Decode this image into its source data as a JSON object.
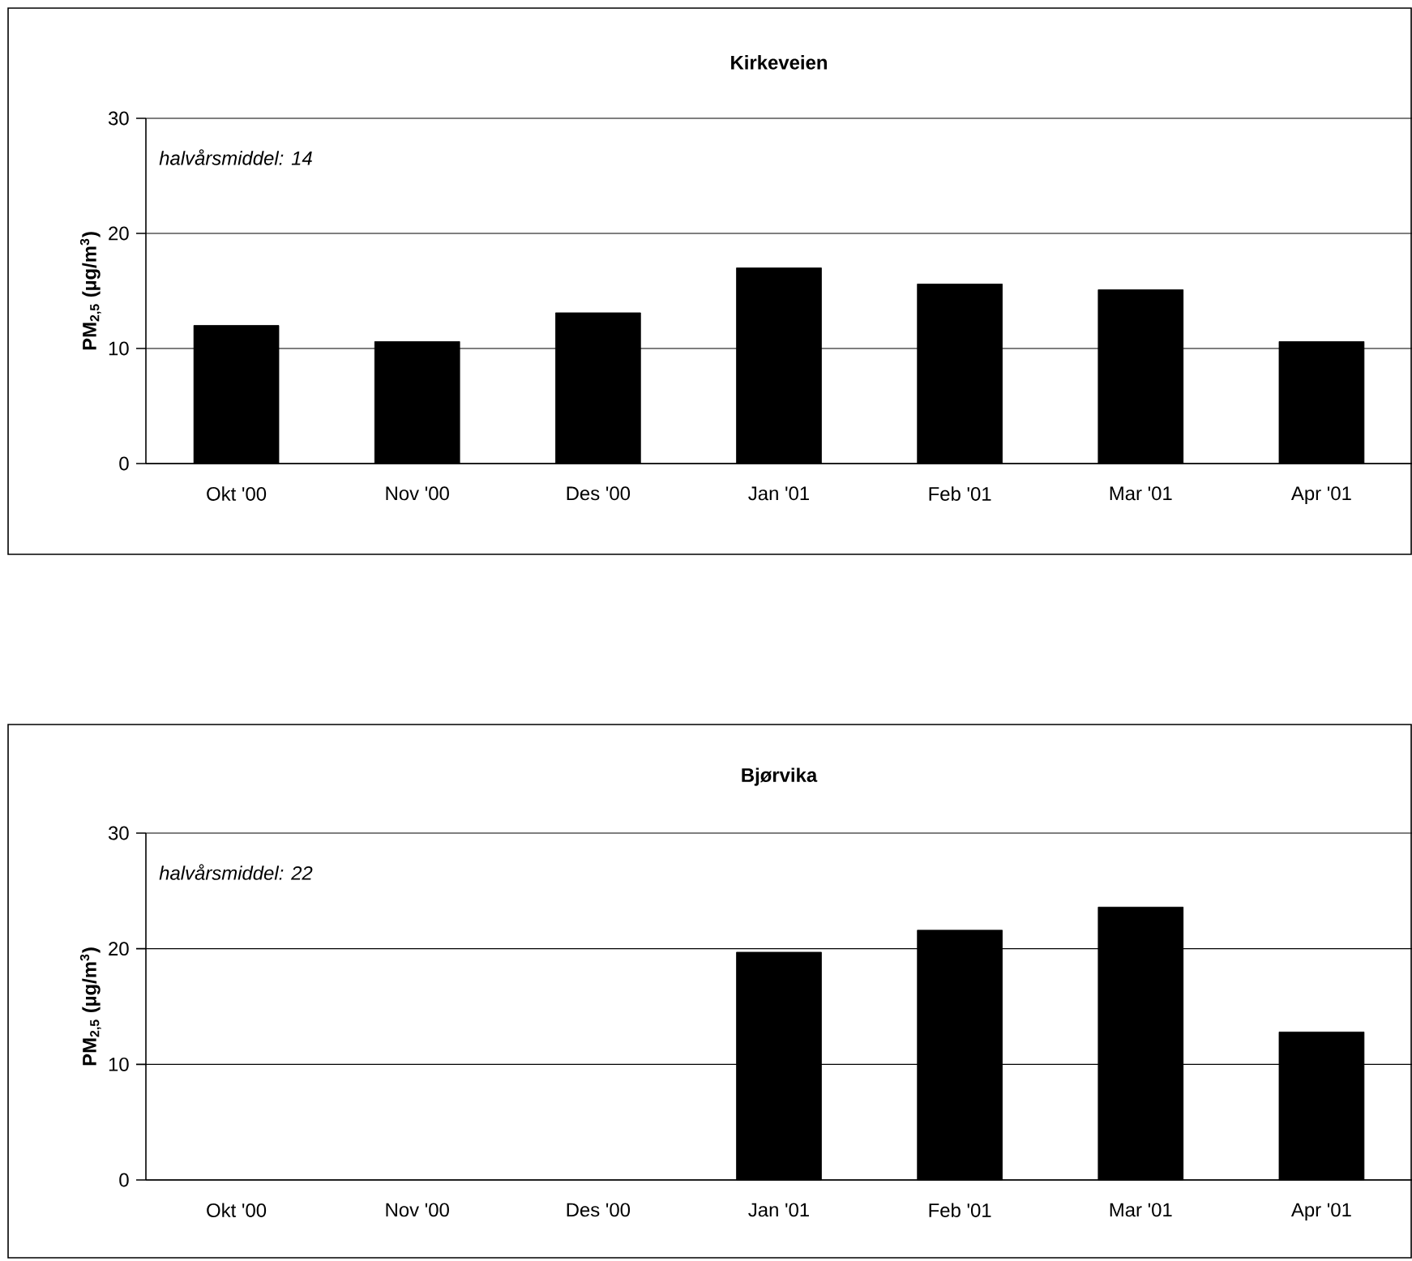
{
  "chart_data": [
    {
      "type": "bar",
      "title": "Kirkeveien",
      "ylabel": "PM$_{2,5}$ (µg/m$^{3}$)",
      "categories": [
        "Okt '00",
        "Nov '00",
        "Des '00",
        "Jan '01",
        "Feb '01",
        "Mar '01",
        "Apr '01"
      ],
      "values": [
        12.0,
        10.6,
        13.1,
        17.0,
        15.6,
        15.1,
        10.6
      ],
      "color": "#000000",
      "ylim": [
        0,
        30
      ],
      "yticks": [
        0,
        10,
        20,
        30
      ],
      "grid": "y",
      "annotations": [
        "halvårsmiddel: 14"
      ]
    },
    {
      "type": "bar",
      "title": "Bjørvika",
      "ylabel": "PM$_{2,5}$ (µg/m$^{3}$)",
      "categories": [
        "Okt '00",
        "Nov '00",
        "Des '00",
        "Jan '01",
        "Feb '01",
        "Mar '01",
        "Apr '01"
      ],
      "values": [
        null,
        null,
        null,
        19.7,
        21.6,
        23.6,
        12.8
      ],
      "color": "#000000",
      "ylim": [
        0,
        30
      ],
      "yticks": [
        0,
        10,
        20,
        30
      ],
      "grid": "y",
      "annotations": [
        "halvårsmiddel: 22"
      ]
    }
  ]
}
